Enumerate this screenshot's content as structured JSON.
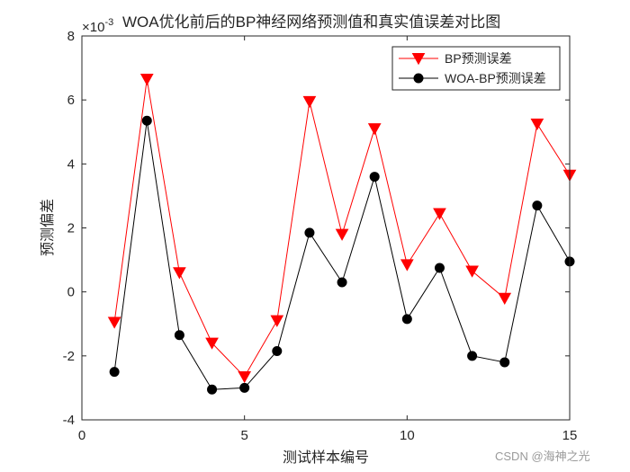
{
  "chart_data": {
    "type": "line",
    "title": "WOA优化前后的BP神经网络预测值和真实值误差对比图",
    "exponent_label": "×10",
    "exponent_power": "-3",
    "xlabel": "测试样本编号",
    "ylabel": "预测偏差",
    "xlim": [
      0,
      15
    ],
    "ylim": [
      -4,
      8
    ],
    "xticks": [
      0,
      5,
      10,
      15
    ],
    "yticks": [
      -4,
      -2,
      0,
      2,
      4,
      6,
      8
    ],
    "grid": false,
    "legend_position": "top-right",
    "x": [
      1,
      2,
      3,
      4,
      5,
      6,
      7,
      8,
      9,
      10,
      11,
      12,
      13,
      14,
      15
    ],
    "series": [
      {
        "name": "BP预测误差",
        "color": "#ff0000",
        "marker": "triangle-down",
        "values": [
          -0.95,
          6.65,
          0.6,
          -1.6,
          -2.65,
          -0.9,
          5.95,
          1.8,
          5.1,
          0.85,
          2.45,
          0.65,
          -0.2,
          5.25,
          3.65
        ]
      },
      {
        "name": "WOA-BP预测误差",
        "color": "#000000",
        "marker": "circle",
        "values": [
          -2.5,
          5.35,
          -1.35,
          -3.05,
          -3.0,
          -1.85,
          1.85,
          0.3,
          3.6,
          -0.85,
          0.75,
          -2.0,
          -2.2,
          2.7,
          0.95
        ]
      }
    ]
  },
  "watermark": "CSDN @海神之光"
}
